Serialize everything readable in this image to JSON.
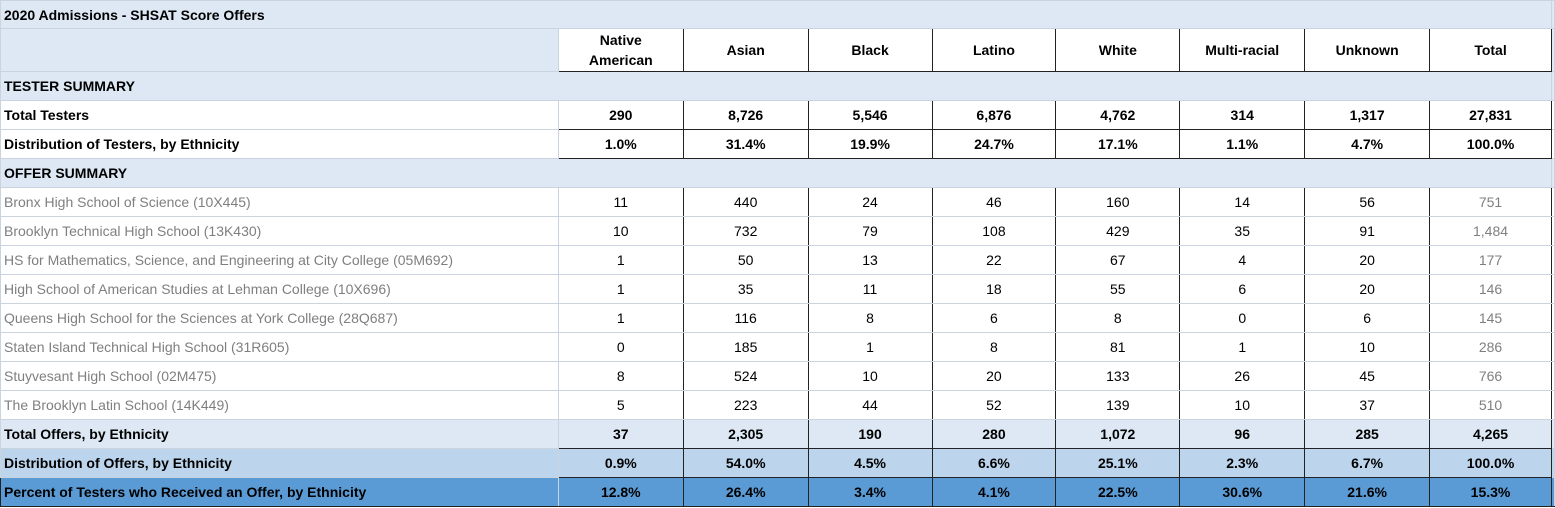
{
  "title": "2020 Admissions - SHSAT Score Offers",
  "columns": [
    "Native American",
    "Asian",
    "Black",
    "Latino",
    "White",
    "Multi-racial",
    "Unknown",
    "Total"
  ],
  "column_lines": [
    [
      "Native",
      "American"
    ],
    [
      "Asian"
    ],
    [
      "Black"
    ],
    [
      "Latino"
    ],
    [
      "White"
    ],
    [
      "Multi-racial"
    ],
    [
      "Unknown"
    ],
    [
      "Total"
    ]
  ],
  "tester_summary_label": "TESTER SUMMARY",
  "tester_rows": [
    {
      "label": "Total Testers",
      "values": [
        "290",
        "8,726",
        "5,546",
        "6,876",
        "4,762",
        "314",
        "1,317",
        "27,831"
      ]
    },
    {
      "label": "Distribution of Testers, by Ethnicity",
      "values": [
        "1.0%",
        "31.4%",
        "19.9%",
        "24.7%",
        "17.1%",
        "1.1%",
        "4.7%",
        "100.0%"
      ]
    }
  ],
  "offer_summary_label": "OFFER SUMMARY",
  "school_rows": [
    {
      "label": "Bronx High School of Science (10X445)",
      "values": [
        "11",
        "440",
        "24",
        "46",
        "160",
        "14",
        "56",
        "751"
      ]
    },
    {
      "label": "Brooklyn Technical High School (13K430)",
      "values": [
        "10",
        "732",
        "79",
        "108",
        "429",
        "35",
        "91",
        "1,484"
      ]
    },
    {
      "label": "HS for Mathematics, Science, and Engineering at City College (05M692)",
      "values": [
        "1",
        "50",
        "13",
        "22",
        "67",
        "4",
        "20",
        "177"
      ]
    },
    {
      "label": "High School of American Studies at Lehman College (10X696)",
      "values": [
        "1",
        "35",
        "11",
        "18",
        "55",
        "6",
        "20",
        "146"
      ]
    },
    {
      "label": "Queens High School for the Sciences at York College (28Q687)",
      "values": [
        "1",
        "116",
        "8",
        "6",
        "8",
        "0",
        "6",
        "145"
      ]
    },
    {
      "label": "Staten Island Technical High School (31R605)",
      "values": [
        "0",
        "185",
        "1",
        "8",
        "81",
        "1",
        "10",
        "286"
      ]
    },
    {
      "label": "Stuyvesant High School (02M475)",
      "values": [
        "8",
        "524",
        "10",
        "20",
        "133",
        "26",
        "45",
        "766"
      ]
    },
    {
      "label": "The Brooklyn Latin School (14K449)",
      "values": [
        "5",
        "223",
        "44",
        "52",
        "139",
        "10",
        "37",
        "510"
      ]
    }
  ],
  "total_offers": {
    "label": "Total Offers, by Ethnicity",
    "values": [
      "37",
      "2,305",
      "190",
      "280",
      "1,072",
      "96",
      "285",
      "4,265"
    ]
  },
  "dist_offers": {
    "label": "Distribution of Offers, by Ethnicity",
    "values": [
      "0.9%",
      "54.0%",
      "4.5%",
      "6.6%",
      "25.1%",
      "2.3%",
      "6.7%",
      "100.0%"
    ]
  },
  "pct_offers": {
    "label": "Percent of Testers who Received an Offer, by Ethnicity",
    "values": [
      "12.8%",
      "26.4%",
      "3.4%",
      "4.1%",
      "22.5%",
      "30.6%",
      "21.6%",
      "15.3%"
    ]
  }
}
